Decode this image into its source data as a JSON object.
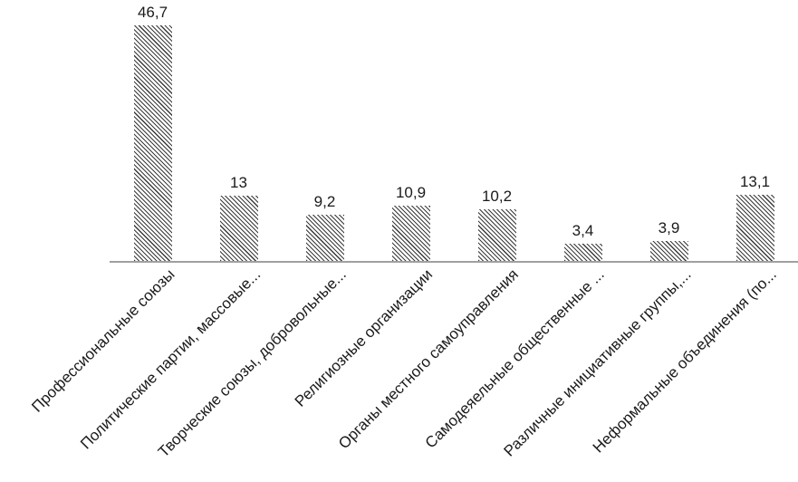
{
  "chart_data": {
    "type": "bar",
    "title": "",
    "xlabel": "",
    "ylabel": "",
    "categories": [
      "Профессиональные союзы",
      "Политические партии, массовые...",
      "Творческие союзы, добровольные...",
      "Религиозные организации",
      "Органы местного самоуправления",
      "Самодеяельные общественные ...",
      "Различные инициативные группы,...",
      "Неформальные объединения (по..."
    ],
    "values": [
      46.7,
      13,
      9.2,
      10.9,
      10.2,
      3.4,
      3.9,
      13.1
    ],
    "value_labels": [
      "46,7",
      "13",
      "9,2",
      "10,9",
      "10,2",
      "3,4",
      "3,9",
      "13,1"
    ],
    "ylim": [
      0,
      50
    ],
    "grid": false,
    "legend": false,
    "bar_style": "diagonal-hatch",
    "colors": {
      "hatch_line": "#3a3a3a",
      "hatch_background": "#ffffff",
      "axis_line": "#a0a0a0",
      "label_text": "#1a1a1a",
      "background": "#ffffff"
    }
  }
}
